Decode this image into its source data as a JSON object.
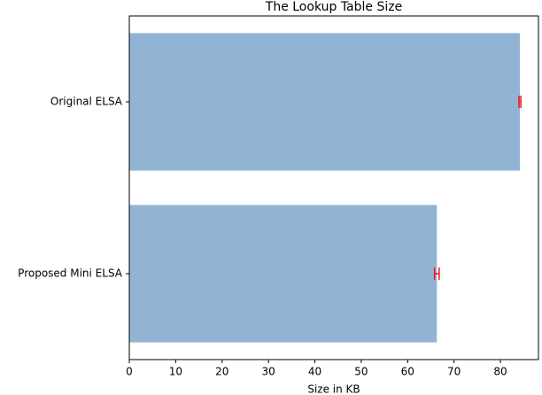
{
  "chart_data": {
    "type": "barh",
    "title": "The Lookup Table Size",
    "xlabel": "Size in KB",
    "categories": [
      "Original ELSA",
      "Proposed Mini ELSA"
    ],
    "values": [
      84.2,
      66.3
    ],
    "errors": [
      0.2,
      0.5
    ],
    "color": "#92b4d4",
    "error_color": "#e41a1c",
    "xlim": [
      0,
      88.2
    ],
    "xticks": [
      0,
      10,
      20,
      30,
      40,
      50,
      60,
      70,
      80
    ]
  }
}
